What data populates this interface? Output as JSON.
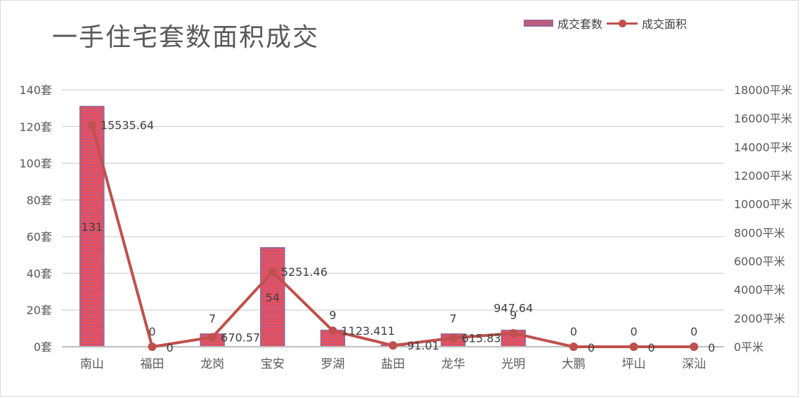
{
  "chart_data": {
    "type": "bar+line",
    "title": "一手住宅套数面积成交",
    "categories": [
      "南山",
      "福田",
      "龙岗",
      "宝安",
      "罗湖",
      "盐田",
      "龙华",
      "光明",
      "大鹏",
      "坪山",
      "深汕"
    ],
    "series": [
      {
        "name": "成交套数",
        "type": "bar",
        "axis": "left",
        "values": [
          131,
          0,
          7,
          54,
          9,
          1,
          7,
          9,
          0,
          0,
          0
        ],
        "labels": [
          "131",
          "0",
          "7",
          "54",
          "9",
          "",
          "7",
          "9",
          "0",
          "0",
          "0"
        ],
        "color": "#e8515e"
      },
      {
        "name": "成交面积",
        "type": "line",
        "axis": "right",
        "values": [
          15535.64,
          0,
          670.57,
          5251.46,
          1123.411,
          91.01,
          615.83,
          947.64,
          0,
          0,
          0
        ],
        "labels": [
          "15535.64",
          "0",
          "670.57",
          "5251.46",
          "1123.411",
          "91.01",
          "615.83",
          "947.64",
          "0",
          "0",
          "0"
        ],
        "color": "#c0504d"
      }
    ],
    "y_left": {
      "range": [
        0,
        140
      ],
      "ticks": [
        "0套",
        "20套",
        "40套",
        "60套",
        "80套",
        "100套",
        "120套",
        "140套"
      ]
    },
    "y_right": {
      "range": [
        0,
        18000
      ],
      "ticks": [
        "0平米",
        "2000平米",
        "4000平米",
        "6000平米",
        "8000平米",
        "10000平米",
        "12000平米",
        "14000平米",
        "16000平米",
        "18000平米"
      ]
    },
    "grid": true,
    "legend": "top-right"
  }
}
